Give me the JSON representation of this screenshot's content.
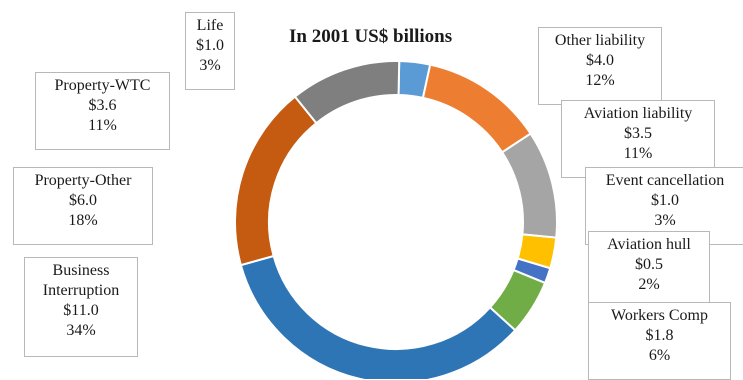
{
  "chart_data": {
    "type": "donut",
    "title": "In 2001 US$ billions",
    "unit": "US$ billions",
    "categories": [
      "Life",
      "Other liability",
      "Aviation liability",
      "Event cancellation",
      "Aviation hull",
      "Workers Comp",
      "Business Interruption",
      "Property-Other",
      "Property-WTC"
    ],
    "series": [
      {
        "values": [
          1.0,
          4.0,
          3.5,
          1.0,
          0.5,
          1.8,
          11.0,
          6.0,
          3.6
        ]
      }
    ],
    "labels": [
      {
        "name": "Life",
        "value": "$1.0",
        "percent": "3%"
      },
      {
        "name": "Other liability",
        "value": "$4.0",
        "percent": "12%"
      },
      {
        "name": "Aviation liability",
        "value": "$3.5",
        "percent": "11%"
      },
      {
        "name": "Event cancellation",
        "value": "$1.0",
        "percent": "3%"
      },
      {
        "name": "Aviation hull",
        "value": "$0.5",
        "percent": "2%"
      },
      {
        "name": "Workers Comp",
        "value": "$1.8",
        "percent": "6%"
      },
      {
        "name": "Business Interruption",
        "value": "$11.0",
        "percent": "34%"
      },
      {
        "name": "Property-Other",
        "value": "$6.0",
        "percent": "18%"
      },
      {
        "name": "Property-WTC",
        "value": "$3.6",
        "percent": "11%"
      }
    ],
    "colors": [
      "#5b9bd5",
      "#ed7d31",
      "#a5a5a5",
      "#ffc000",
      "#4472c4",
      "#70ad47",
      "#2e75b6",
      "#c55a11",
      "#7f7f7f"
    ]
  }
}
